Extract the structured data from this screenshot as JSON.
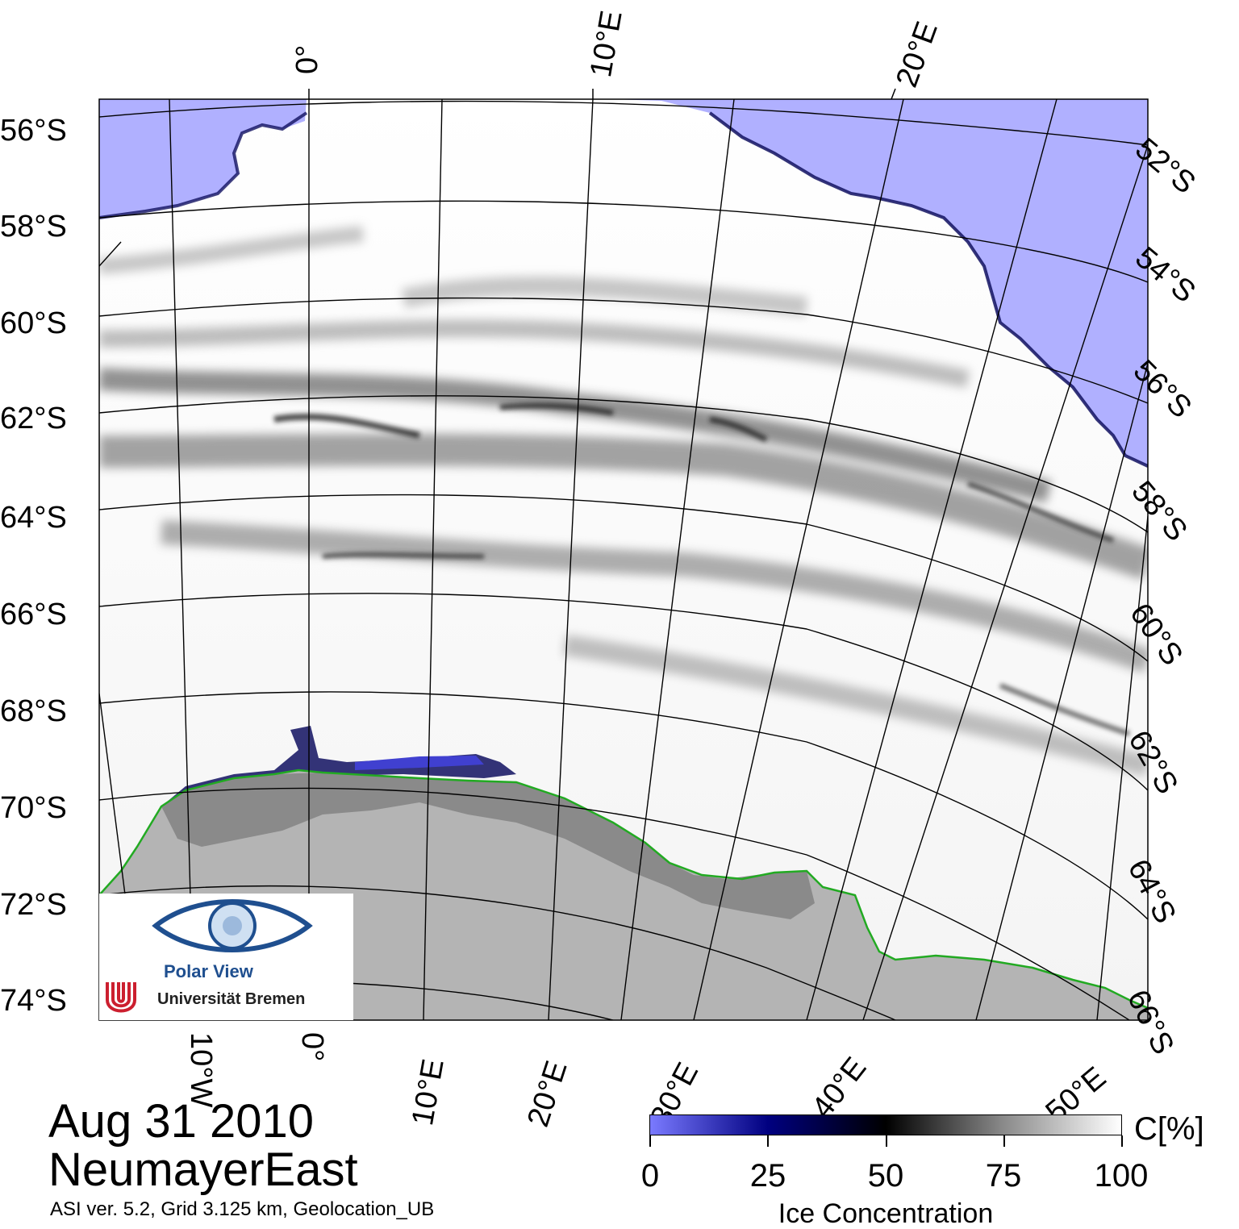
{
  "map": {
    "colors": {
      "open_water": "#b0b0ff",
      "land": "#b4b4b4",
      "ice_shelf": "#8a8a8a",
      "coastline": "#22aa22",
      "graticule": "#000000"
    },
    "latitude_labels_left": [
      "56°S",
      "58°S",
      "60°S",
      "62°S",
      "64°S",
      "66°S",
      "68°S",
      "70°S",
      "72°S",
      "74°S"
    ],
    "latitude_labels_right": [
      "52°S",
      "54°S",
      "56°S",
      "58°S",
      "60°S",
      "62°S",
      "64°S",
      "66°S"
    ],
    "longitude_labels_top": [
      "0°",
      "10°E",
      "20°E"
    ],
    "longitude_labels_bottom": [
      "10°W",
      "0°",
      "10°E",
      "20°E",
      "30°E",
      "40°E",
      "50°E"
    ]
  },
  "title": {
    "date": "Aug 31 2010",
    "region": "NeumayerEast"
  },
  "footnote": "ASI ver. 5.2,  Grid 3.125 km, Geolocation_UB",
  "colorbar": {
    "unit": "C[%]",
    "title": "Ice Concentration",
    "ticks": [
      "0",
      "25",
      "50",
      "75",
      "100"
    ],
    "stops": [
      "#7a7aff",
      "#000080",
      "#000000",
      "#8a8a8a",
      "#ffffff"
    ]
  },
  "logo": {
    "name": "Polar View",
    "institution": "Universität Bremen",
    "colors": {
      "eye": "#1f4f8f",
      "uni_red": "#cc1f2f"
    }
  }
}
